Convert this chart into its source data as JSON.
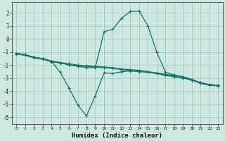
{
  "xlabel": "Humidex (Indice chaleur)",
  "background_color": "#cce8e0",
  "grid_color": "#9cc8c0",
  "line_color": "#1a7068",
  "xlim": [
    -0.5,
    23.5
  ],
  "ylim": [
    -6.5,
    2.8
  ],
  "xticks": [
    0,
    1,
    2,
    3,
    4,
    5,
    6,
    7,
    8,
    9,
    10,
    11,
    12,
    13,
    14,
    15,
    16,
    17,
    18,
    19,
    20,
    21,
    22,
    23
  ],
  "yticks": [
    -6,
    -5,
    -4,
    -3,
    -2,
    -1,
    0,
    1,
    2
  ],
  "series": [
    {
      "x": [
        0,
        1,
        2,
        3,
        4,
        5,
        6,
        7,
        8,
        9,
        10,
        11,
        12,
        13,
        14,
        15,
        16,
        17,
        18,
        19,
        20,
        21,
        22,
        23
      ],
      "y": [
        -1.1,
        -1.2,
        -1.4,
        -1.5,
        -1.7,
        -1.8,
        -2.0,
        -2.1,
        -2.2,
        -2.2,
        0.55,
        0.75,
        1.6,
        2.1,
        2.15,
        1.0,
        -1.0,
        -2.55,
        -2.75,
        -2.9,
        -3.1,
        -3.35,
        -3.5,
        -3.55
      ]
    },
    {
      "x": [
        0,
        1,
        2,
        3,
        4,
        5,
        6,
        7,
        8,
        9,
        10,
        11,
        12,
        13,
        14,
        15,
        16,
        17,
        18,
        19,
        20,
        21,
        22,
        23
      ],
      "y": [
        -1.1,
        -1.2,
        -1.4,
        -1.5,
        -1.7,
        -2.55,
        -3.75,
        -5.05,
        -5.9,
        -4.35,
        -2.6,
        -2.65,
        -2.5,
        -2.45,
        -2.5,
        -2.55,
        -2.65,
        -2.8,
        -2.9,
        -3.0,
        -3.15,
        -3.35,
        -3.5,
        -3.55
      ]
    },
    {
      "x": [
        0,
        1,
        2,
        3,
        4,
        5,
        6,
        7,
        8,
        9,
        10,
        11,
        12,
        13,
        14,
        15,
        16,
        17,
        18,
        19,
        20,
        21,
        22,
        23
      ],
      "y": [
        -1.1,
        -1.2,
        -1.4,
        -1.5,
        -1.7,
        -1.8,
        -1.9,
        -2.0,
        -2.05,
        -2.1,
        -2.15,
        -2.2,
        -2.3,
        -2.35,
        -2.4,
        -2.5,
        -2.6,
        -2.7,
        -2.8,
        -2.9,
        -3.1,
        -3.35,
        -3.5,
        -3.55
      ]
    },
    {
      "x": [
        0,
        1,
        2,
        3,
        4,
        5,
        6,
        7,
        8,
        9,
        10,
        11,
        12,
        13,
        14,
        15,
        16,
        17,
        18,
        19,
        20,
        21,
        22,
        23
      ],
      "y": [
        -1.15,
        -1.25,
        -1.45,
        -1.55,
        -1.75,
        -1.85,
        -1.95,
        -2.05,
        -2.1,
        -2.15,
        -2.2,
        -2.25,
        -2.35,
        -2.4,
        -2.45,
        -2.55,
        -2.65,
        -2.75,
        -2.85,
        -2.95,
        -3.15,
        -3.4,
        -3.55,
        -3.6
      ]
    }
  ]
}
